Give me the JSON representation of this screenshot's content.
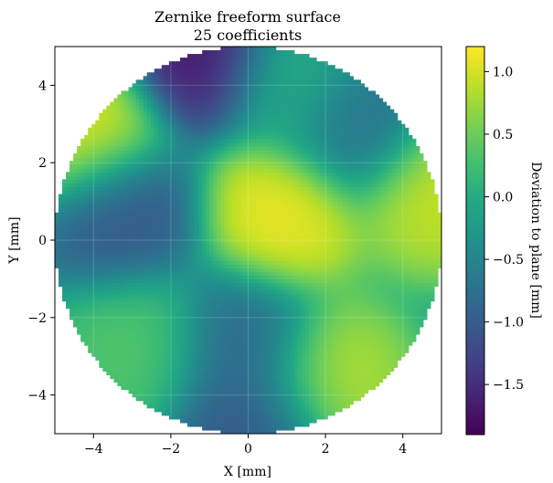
{
  "chart_data": {
    "type": "heatmap",
    "title": "Zernike freeform surface",
    "subtitle": "25 coefficients",
    "xlabel": "X [mm]",
    "ylabel": "Y [mm]",
    "xlim": [
      -5,
      5
    ],
    "ylim": [
      -5,
      5
    ],
    "aperture_radius": 5,
    "x_ticks": [
      -4,
      -2,
      0,
      2,
      4
    ],
    "y_ticks": [
      -4,
      -2,
      0,
      2,
      4
    ],
    "x_tick_labels": [
      "−4",
      "−2",
      "0",
      "2",
      "4"
    ],
    "y_tick_labels": [
      "−4",
      "−2",
      "0",
      "2",
      "4"
    ],
    "grid": true,
    "colormap": "viridis",
    "colorbar": {
      "label": "Deviation to plane [mm]",
      "range": [
        -1.9,
        1.2
      ],
      "ticks": [
        -1.5,
        -1.0,
        -0.5,
        0.0,
        0.5,
        1.0
      ],
      "tick_labels": [
        "−1.5",
        "−1.0",
        "−0.5",
        "0.0",
        "0.5",
        "1.0"
      ]
    },
    "features": [
      {
        "x": 0.8,
        "y": 0.6,
        "value": 1.2
      },
      {
        "x": -4.2,
        "y": 2.9,
        "value": 1.1
      },
      {
        "x": 4.9,
        "y": 1.2,
        "value": 1.0
      },
      {
        "x": 2.2,
        "y": -3.6,
        "value": 0.9
      },
      {
        "x": -2.8,
        "y": -2.6,
        "value": 0.4
      },
      {
        "x": -3.2,
        "y": 0.6,
        "value": -1.1
      },
      {
        "x": 2.8,
        "y": 3.1,
        "value": -0.8
      },
      {
        "x": -0.2,
        "y": -2.6,
        "value": -0.9
      },
      {
        "x": 0.2,
        "y": -4.9,
        "value": -1.1
      },
      {
        "x": -1.2,
        "y": 4.9,
        "value": -1.8
      },
      {
        "x": 1.2,
        "y": 4.2,
        "value": 0.1
      }
    ]
  }
}
